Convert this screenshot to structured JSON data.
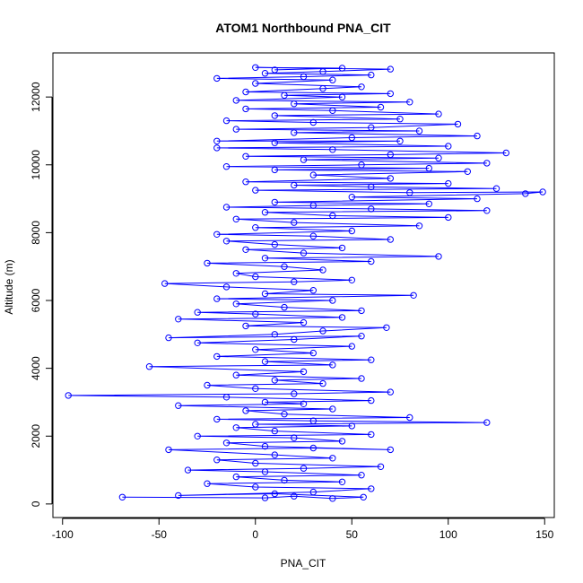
{
  "chart_data": {
    "type": "scatter",
    "title": "ATOM1 Northbound PNA_CIT",
    "xlabel": "PNA_CIT",
    "ylabel": "Altitude (m)",
    "xlim": [
      -105,
      155
    ],
    "ylim": [
      -400,
      13300
    ],
    "x_ticks": [
      -100,
      -50,
      0,
      50,
      100,
      150
    ],
    "y_ticks": [
      0,
      2000,
      4000,
      6000,
      8000,
      10000,
      12000
    ],
    "grid": false,
    "legend": "none",
    "colors": {
      "series": "#0000ff",
      "axis": "#000000",
      "background": "#ffffff"
    },
    "series": [
      {
        "style": "points-and-lines",
        "marker": "open-circle",
        "points": [
          [
            -69,
            200
          ],
          [
            5,
            180
          ],
          [
            20,
            230
          ],
          [
            40,
            160
          ],
          [
            56,
            200
          ],
          [
            10,
            300
          ],
          [
            -40,
            250
          ],
          [
            30,
            350
          ],
          [
            60,
            450
          ],
          [
            0,
            500
          ],
          [
            -25,
            600
          ],
          [
            45,
            650
          ],
          [
            15,
            700
          ],
          [
            -10,
            800
          ],
          [
            55,
            850
          ],
          [
            5,
            950
          ],
          [
            -35,
            1000
          ],
          [
            25,
            1050
          ],
          [
            65,
            1100
          ],
          [
            0,
            1200
          ],
          [
            -20,
            1300
          ],
          [
            40,
            1350
          ],
          [
            10,
            1450
          ],
          [
            -45,
            1600
          ],
          [
            30,
            1650
          ],
          [
            70,
            1600
          ],
          [
            5,
            1700
          ],
          [
            -15,
            1800
          ],
          [
            45,
            1850
          ],
          [
            20,
            1950
          ],
          [
            -30,
            2000
          ],
          [
            60,
            2050
          ],
          [
            10,
            2150
          ],
          [
            -10,
            2250
          ],
          [
            50,
            2300
          ],
          [
            0,
            2350
          ],
          [
            120,
            2400
          ],
          [
            30,
            2450
          ],
          [
            -20,
            2500
          ],
          [
            80,
            2550
          ],
          [
            15,
            2650
          ],
          [
            -5,
            2750
          ],
          [
            40,
            2800
          ],
          [
            -40,
            2900
          ],
          [
            25,
            2950
          ],
          [
            5,
            3000
          ],
          [
            60,
            3050
          ],
          [
            -15,
            3150
          ],
          [
            -97,
            3200
          ],
          [
            20,
            3250
          ],
          [
            70,
            3300
          ],
          [
            0,
            3400
          ],
          [
            -25,
            3500
          ],
          [
            35,
            3550
          ],
          [
            10,
            3650
          ],
          [
            55,
            3700
          ],
          [
            -10,
            3800
          ],
          [
            25,
            3900
          ],
          [
            -55,
            4050
          ],
          [
            40,
            4100
          ],
          [
            5,
            4200
          ],
          [
            60,
            4250
          ],
          [
            -20,
            4350
          ],
          [
            30,
            4450
          ],
          [
            0,
            4550
          ],
          [
            50,
            4650
          ],
          [
            -30,
            4750
          ],
          [
            20,
            4850
          ],
          [
            55,
            4950
          ],
          [
            -45,
            4900
          ],
          [
            10,
            5000
          ],
          [
            35,
            5100
          ],
          [
            68,
            5200
          ],
          [
            -5,
            5250
          ],
          [
            25,
            5350
          ],
          [
            -40,
            5450
          ],
          [
            45,
            5500
          ],
          [
            0,
            5600
          ],
          [
            -30,
            5650
          ],
          [
            55,
            5700
          ],
          [
            15,
            5800
          ],
          [
            -10,
            5900
          ],
          [
            40,
            6000
          ],
          [
            -20,
            6050
          ],
          [
            82,
            6150
          ],
          [
            5,
            6200
          ],
          [
            30,
            6300
          ],
          [
            -15,
            6400
          ],
          [
            -47,
            6500
          ],
          [
            20,
            6550
          ],
          [
            50,
            6600
          ],
          [
            0,
            6700
          ],
          [
            -10,
            6800
          ],
          [
            35,
            6900
          ],
          [
            15,
            7000
          ],
          [
            -25,
            7100
          ],
          [
            60,
            7150
          ],
          [
            5,
            7250
          ],
          [
            95,
            7300
          ],
          [
            25,
            7400
          ],
          [
            -5,
            7500
          ],
          [
            45,
            7550
          ],
          [
            10,
            7650
          ],
          [
            -15,
            7750
          ],
          [
            70,
            7800
          ],
          [
            30,
            7900
          ],
          [
            -20,
            7950
          ],
          [
            50,
            8050
          ],
          [
            0,
            8150
          ],
          [
            85,
            8200
          ],
          [
            20,
            8300
          ],
          [
            -10,
            8400
          ],
          [
            100,
            8450
          ],
          [
            40,
            8500
          ],
          [
            5,
            8600
          ],
          [
            120,
            8650
          ],
          [
            60,
            8700
          ],
          [
            -15,
            8750
          ],
          [
            30,
            8800
          ],
          [
            90,
            8850
          ],
          [
            10,
            8900
          ],
          [
            115,
            9000
          ],
          [
            50,
            9050
          ],
          [
            140,
            9150
          ],
          [
            149,
            9200
          ],
          [
            80,
            9180
          ],
          [
            0,
            9250
          ],
          [
            125,
            9300
          ],
          [
            60,
            9350
          ],
          [
            20,
            9400
          ],
          [
            100,
            9450
          ],
          [
            -5,
            9500
          ],
          [
            70,
            9600
          ],
          [
            30,
            9700
          ],
          [
            110,
            9800
          ],
          [
            10,
            9850
          ],
          [
            90,
            9900
          ],
          [
            -15,
            9950
          ],
          [
            55,
            10000
          ],
          [
            120,
            10050
          ],
          [
            25,
            10150
          ],
          [
            95,
            10200
          ],
          [
            -5,
            10250
          ],
          [
            70,
            10300
          ],
          [
            130,
            10350
          ],
          [
            40,
            10450
          ],
          [
            -20,
            10500
          ],
          [
            100,
            10550
          ],
          [
            10,
            10650
          ],
          [
            75,
            10700
          ],
          [
            -20,
            10700
          ],
          [
            50,
            10800
          ],
          [
            115,
            10850
          ],
          [
            20,
            10950
          ],
          [
            85,
            11000
          ],
          [
            -10,
            11050
          ],
          [
            60,
            11100
          ],
          [
            105,
            11200
          ],
          [
            30,
            11250
          ],
          [
            -15,
            11300
          ],
          [
            75,
            11350
          ],
          [
            10,
            11450
          ],
          [
            95,
            11500
          ],
          [
            40,
            11600
          ],
          [
            -5,
            11650
          ],
          [
            65,
            11700
          ],
          [
            20,
            11800
          ],
          [
            80,
            11850
          ],
          [
            -10,
            11900
          ],
          [
            45,
            12000
          ],
          [
            15,
            12050
          ],
          [
            70,
            12100
          ],
          [
            -5,
            12150
          ],
          [
            35,
            12250
          ],
          [
            55,
            12300
          ],
          [
            0,
            12400
          ],
          [
            40,
            12500
          ],
          [
            -20,
            12550
          ],
          [
            25,
            12600
          ],
          [
            60,
            12650
          ],
          [
            5,
            12700
          ],
          [
            35,
            12750
          ],
          [
            70,
            12820
          ],
          [
            0,
            12870
          ],
          [
            45,
            12850
          ],
          [
            10,
            12800
          ]
        ]
      }
    ]
  }
}
